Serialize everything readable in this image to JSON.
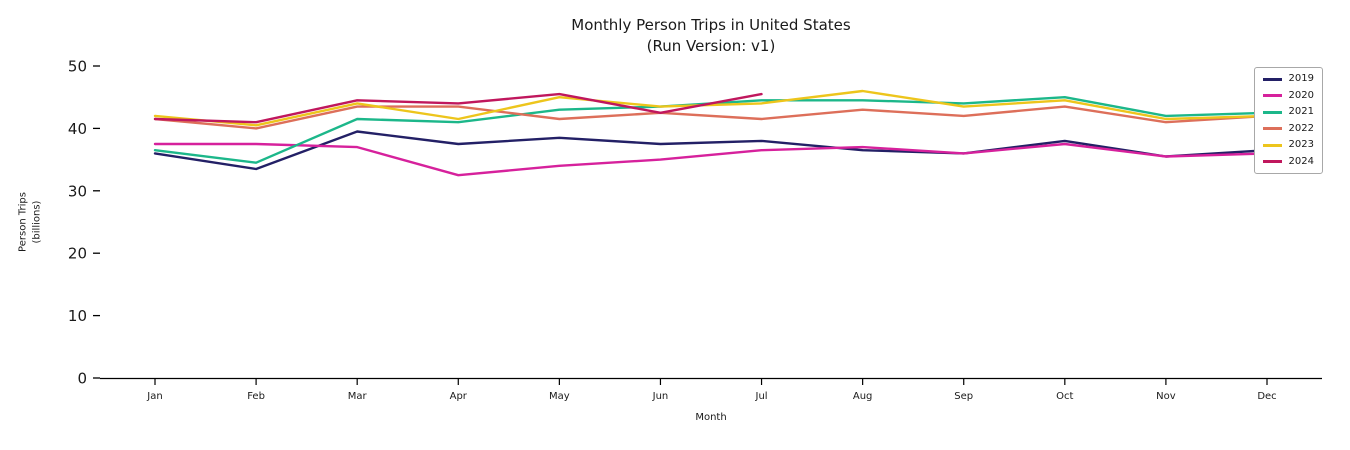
{
  "chart_data": {
    "type": "line",
    "title": "Monthly Person Trips in United States",
    "subtitle": "(Run Version: v1)",
    "xlabel": "Month",
    "ylabel_lines": [
      "Person Trips",
      "(billions)"
    ],
    "categories": [
      "Jan",
      "Feb",
      "Mar",
      "Apr",
      "May",
      "Jun",
      "Jul",
      "Aug",
      "Sep",
      "Oct",
      "Nov",
      "Dec"
    ],
    "ylim": [
      0,
      50
    ],
    "yticks": [
      0,
      10,
      20,
      30,
      40,
      50
    ],
    "grid": false,
    "legend_position": "upper right",
    "series": [
      {
        "name": "2019",
        "color": "#232066",
        "values": [
          36,
          33.5,
          39.5,
          37.5,
          38.5,
          37.5,
          38,
          36.5,
          36,
          38,
          35.5,
          36.5
        ]
      },
      {
        "name": "2020",
        "color": "#d6219c",
        "values": [
          37.5,
          37.5,
          37,
          32.5,
          34,
          35,
          36.5,
          37,
          36,
          37.5,
          35.5,
          36
        ]
      },
      {
        "name": "2021",
        "color": "#1cb78a",
        "values": [
          36.5,
          34.5,
          41.5,
          41,
          43,
          43.5,
          44.5,
          44.5,
          44,
          45,
          42,
          42.5
        ]
      },
      {
        "name": "2022",
        "color": "#dd6f5a",
        "values": [
          41.5,
          40,
          43.5,
          43.5,
          41.5,
          42.5,
          41.5,
          43,
          42,
          43.5,
          41,
          42
        ]
      },
      {
        "name": "2023",
        "color": "#edc51c",
        "values": [
          42,
          40.5,
          44,
          41.5,
          45,
          43.5,
          44,
          46,
          43.5,
          44.5,
          41.5,
          42
        ]
      },
      {
        "name": "2024",
        "color": "#c0175d",
        "values": [
          41.5,
          41,
          44.5,
          44,
          45.5,
          42.5,
          45.5,
          null,
          null,
          null,
          null,
          null
        ]
      }
    ]
  }
}
